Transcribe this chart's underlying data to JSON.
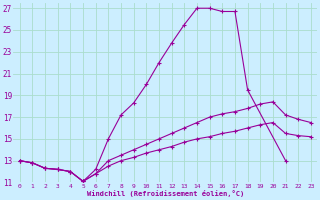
{
  "xlabel": "Windchill (Refroidissement éolien,°C)",
  "background_color": "#cceeff",
  "grid_color": "#aaddcc",
  "line_color": "#990099",
  "xlim": [
    -0.5,
    23.5
  ],
  "ylim": [
    11,
    27.5
  ],
  "xticks": [
    0,
    1,
    2,
    3,
    4,
    5,
    6,
    7,
    8,
    9,
    10,
    11,
    12,
    13,
    14,
    15,
    16,
    17,
    18,
    19,
    20,
    21,
    22,
    23
  ],
  "yticks": [
    11,
    13,
    15,
    17,
    19,
    21,
    23,
    25,
    27
  ],
  "line1_x": [
    0,
    1,
    2,
    3,
    4,
    5,
    6,
    7,
    8,
    9,
    10,
    11,
    12,
    13,
    14,
    15,
    16,
    17,
    18,
    21
  ],
  "line1_y": [
    13.0,
    12.8,
    12.3,
    12.2,
    12.0,
    11.1,
    12.2,
    15.0,
    17.2,
    18.3,
    20.0,
    22.0,
    23.8,
    25.5,
    27.0,
    27.0,
    26.7,
    26.7,
    19.5,
    13.0
  ],
  "line2_x": [
    0,
    1,
    2,
    3,
    4,
    5,
    6,
    7,
    8,
    9,
    10,
    11,
    12,
    13,
    14,
    15,
    16,
    17,
    18,
    19,
    20,
    21,
    22,
    23
  ],
  "line2_y": [
    13.0,
    12.8,
    12.3,
    12.2,
    12.0,
    11.1,
    11.8,
    13.0,
    13.5,
    14.0,
    14.5,
    15.0,
    15.5,
    16.0,
    16.5,
    17.0,
    17.3,
    17.5,
    17.8,
    18.2,
    18.4,
    17.2,
    16.8,
    16.5
  ],
  "line3_x": [
    0,
    1,
    2,
    3,
    4,
    5,
    6,
    7,
    8,
    9,
    10,
    11,
    12,
    13,
    14,
    15,
    16,
    17,
    18,
    19,
    20,
    21,
    22,
    23
  ],
  "line3_y": [
    13.0,
    12.8,
    12.3,
    12.2,
    12.0,
    11.1,
    11.8,
    12.5,
    13.0,
    13.3,
    13.7,
    14.0,
    14.3,
    14.7,
    15.0,
    15.2,
    15.5,
    15.7,
    16.0,
    16.3,
    16.5,
    15.5,
    15.3,
    15.2
  ]
}
